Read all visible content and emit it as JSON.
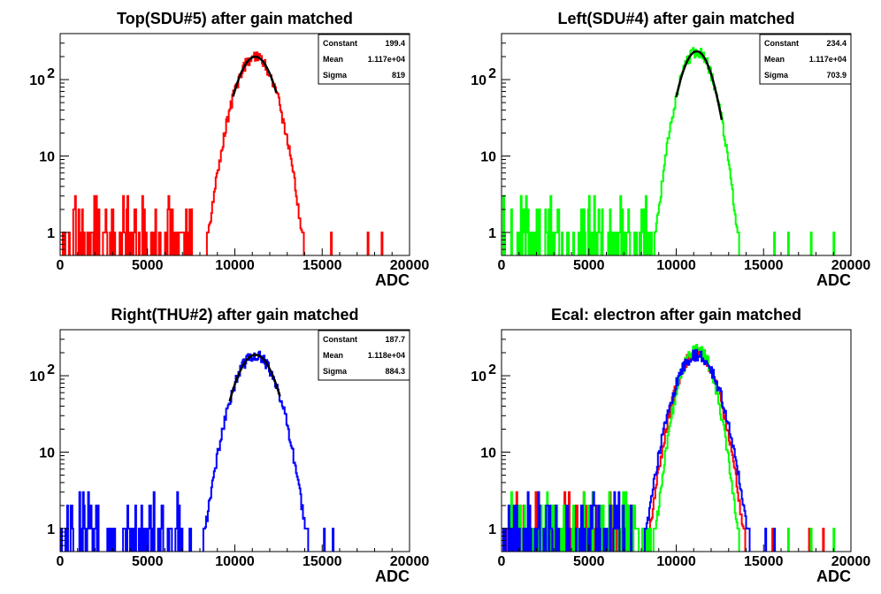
{
  "chart_data": [
    {
      "type": "histogram",
      "title": "Top(SDU#5) after gain matched",
      "xlabel": "ADC",
      "xlim": [
        0,
        20000
      ],
      "ylim": [
        0.5,
        400
      ],
      "yscale": "log",
      "xticks": [
        "0",
        "5000",
        "10000",
        "15000",
        "20000"
      ],
      "yticks": [
        {
          "value": 1,
          "label": "1"
        },
        {
          "value": 10,
          "label": "10"
        },
        {
          "value": 100,
          "label": "10",
          "exp": "2"
        }
      ],
      "stats": [
        {
          "name": "Constant",
          "value": "199.4"
        },
        {
          "name": "Mean",
          "value": "1.117e+04"
        },
        {
          "name": "Sigma",
          "value": "819"
        }
      ],
      "series": [
        {
          "color": "#ff0000",
          "constant": 199.4,
          "mean": 11170,
          "sigma": 819,
          "noise_until": 7600,
          "tail_points": [
            15500,
            17600,
            18400
          ]
        }
      ],
      "fit": {
        "constant": 199.4,
        "mean": 11170,
        "sigma": 819,
        "range": [
          9900,
          12400
        ],
        "color": "#000000"
      }
    },
    {
      "type": "histogram",
      "title": "Left(SDU#4) after gain matched",
      "xlabel": "ADC",
      "xlim": [
        0,
        20000
      ],
      "ylim": [
        0.5,
        400
      ],
      "yscale": "log",
      "xticks": [
        "0",
        "5000",
        "10000",
        "15000",
        "20000"
      ],
      "yticks": [
        {
          "value": 1,
          "label": "1"
        },
        {
          "value": 10,
          "label": "10"
        },
        {
          "value": 100,
          "label": "10",
          "exp": "2"
        }
      ],
      "stats": [
        {
          "name": "Constant",
          "value": "234.4"
        },
        {
          "name": "Mean",
          "value": "1.117e+04"
        },
        {
          "name": "Sigma",
          "value": "703.9"
        }
      ],
      "series": [
        {
          "color": "#00ff00",
          "constant": 234.4,
          "mean": 11170,
          "sigma": 703.9,
          "noise_until": 8800,
          "tail_points": [
            15600,
            16400,
            17700,
            19000
          ]
        }
      ],
      "fit": {
        "constant": 234.4,
        "mean": 11170,
        "sigma": 703.9,
        "range": [
          10000,
          12600
        ],
        "color": "#000000"
      }
    },
    {
      "type": "histogram",
      "title": "Right(THU#2) after gain matched",
      "xlabel": "ADC",
      "xlim": [
        0,
        20000
      ],
      "ylim": [
        0.5,
        400
      ],
      "yscale": "log",
      "xticks": [
        "0",
        "5000",
        "10000",
        "15000",
        "20000"
      ],
      "yticks": [
        {
          "value": 1,
          "label": "1"
        },
        {
          "value": 10,
          "label": "10"
        },
        {
          "value": 100,
          "label": "10",
          "exp": "2"
        }
      ],
      "stats": [
        {
          "name": "Constant",
          "value": "187.7"
        },
        {
          "name": "Mean",
          "value": "1.118e+04"
        },
        {
          "name": "Sigma",
          "value": "884.3"
        }
      ],
      "series": [
        {
          "color": "#0000ff",
          "constant": 187.7,
          "mean": 11180,
          "sigma": 884.3,
          "noise_until": 7500,
          "tail_points": [
            14000,
            15100,
            15600
          ]
        }
      ],
      "fit": {
        "constant": 187.7,
        "mean": 11180,
        "sigma": 884.3,
        "range": [
          9700,
          12600
        ],
        "color": "#000000"
      }
    },
    {
      "type": "histogram",
      "title": "Ecal: electron after gain matched",
      "xlabel": "ADC",
      "xlim": [
        0,
        20000
      ],
      "ylim": [
        0.5,
        400
      ],
      "yscale": "log",
      "xticks": [
        "0",
        "5000",
        "10000",
        "15000",
        "20000"
      ],
      "yticks": [
        {
          "value": 1,
          "label": "1"
        },
        {
          "value": 10,
          "label": "10"
        },
        {
          "value": 100,
          "label": "10",
          "exp": "2"
        }
      ],
      "stats": [],
      "series": [
        {
          "color": "#ff0000",
          "constant": 199.4,
          "mean": 11170,
          "sigma": 819,
          "noise_until": 7600,
          "tail_points": [
            15500,
            17600,
            18400
          ]
        },
        {
          "color": "#00ff00",
          "constant": 234.4,
          "mean": 11170,
          "sigma": 703.9,
          "noise_until": 8800,
          "tail_points": [
            15600,
            16400,
            17700,
            19000
          ]
        },
        {
          "color": "#0000ff",
          "constant": 187.7,
          "mean": 11180,
          "sigma": 884.3,
          "noise_until": 7500,
          "tail_points": [
            14000,
            15100,
            15600
          ]
        }
      ],
      "fit": null
    }
  ]
}
